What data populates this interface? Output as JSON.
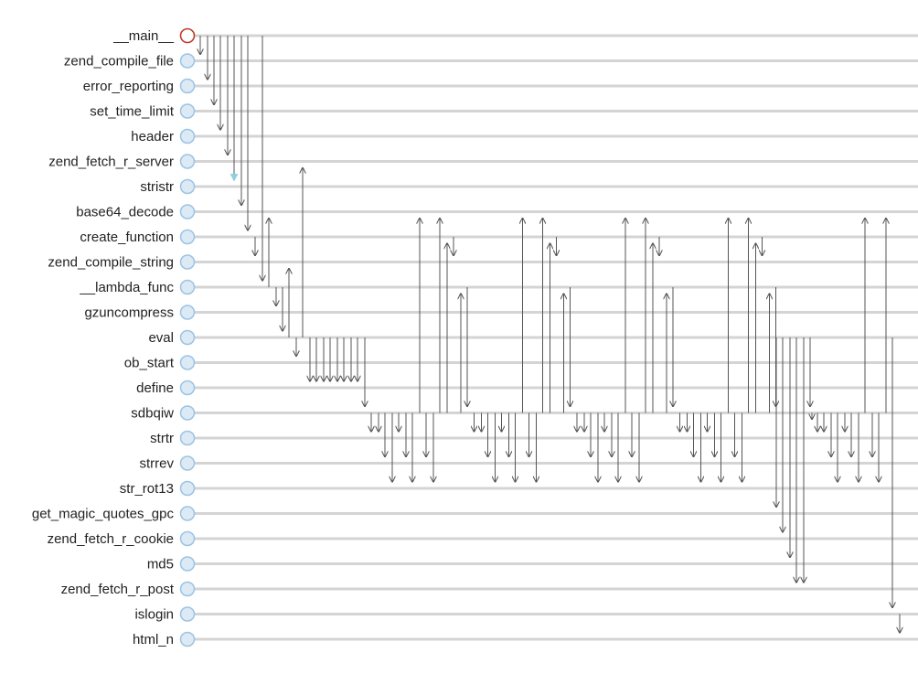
{
  "diagram": {
    "colors": {
      "lane": "#d4d4d4",
      "node_fill": "#dceaf6",
      "node_stroke": "#9cc3e2",
      "root_stroke": "#c0392b",
      "arrow": "#555555",
      "marker_highlight": "#8fd0e0"
    },
    "functions": [
      "__main__",
      "zend_compile_file",
      "error_reporting",
      "set_time_limit",
      "header",
      "zend_fetch_r_server",
      "stristr",
      "base64_decode",
      "create_function",
      "zend_compile_string",
      "__lambda_func",
      "gzuncompress",
      "eval",
      "ob_start",
      "define",
      "sdbqiw",
      "strtr",
      "strrev",
      "str_rot13",
      "get_magic_quotes_gpc",
      "zend_fetch_r_cookie",
      "md5",
      "zend_fetch_r_post",
      "islogin",
      "html_n"
    ],
    "root_function": "__main__"
  }
}
